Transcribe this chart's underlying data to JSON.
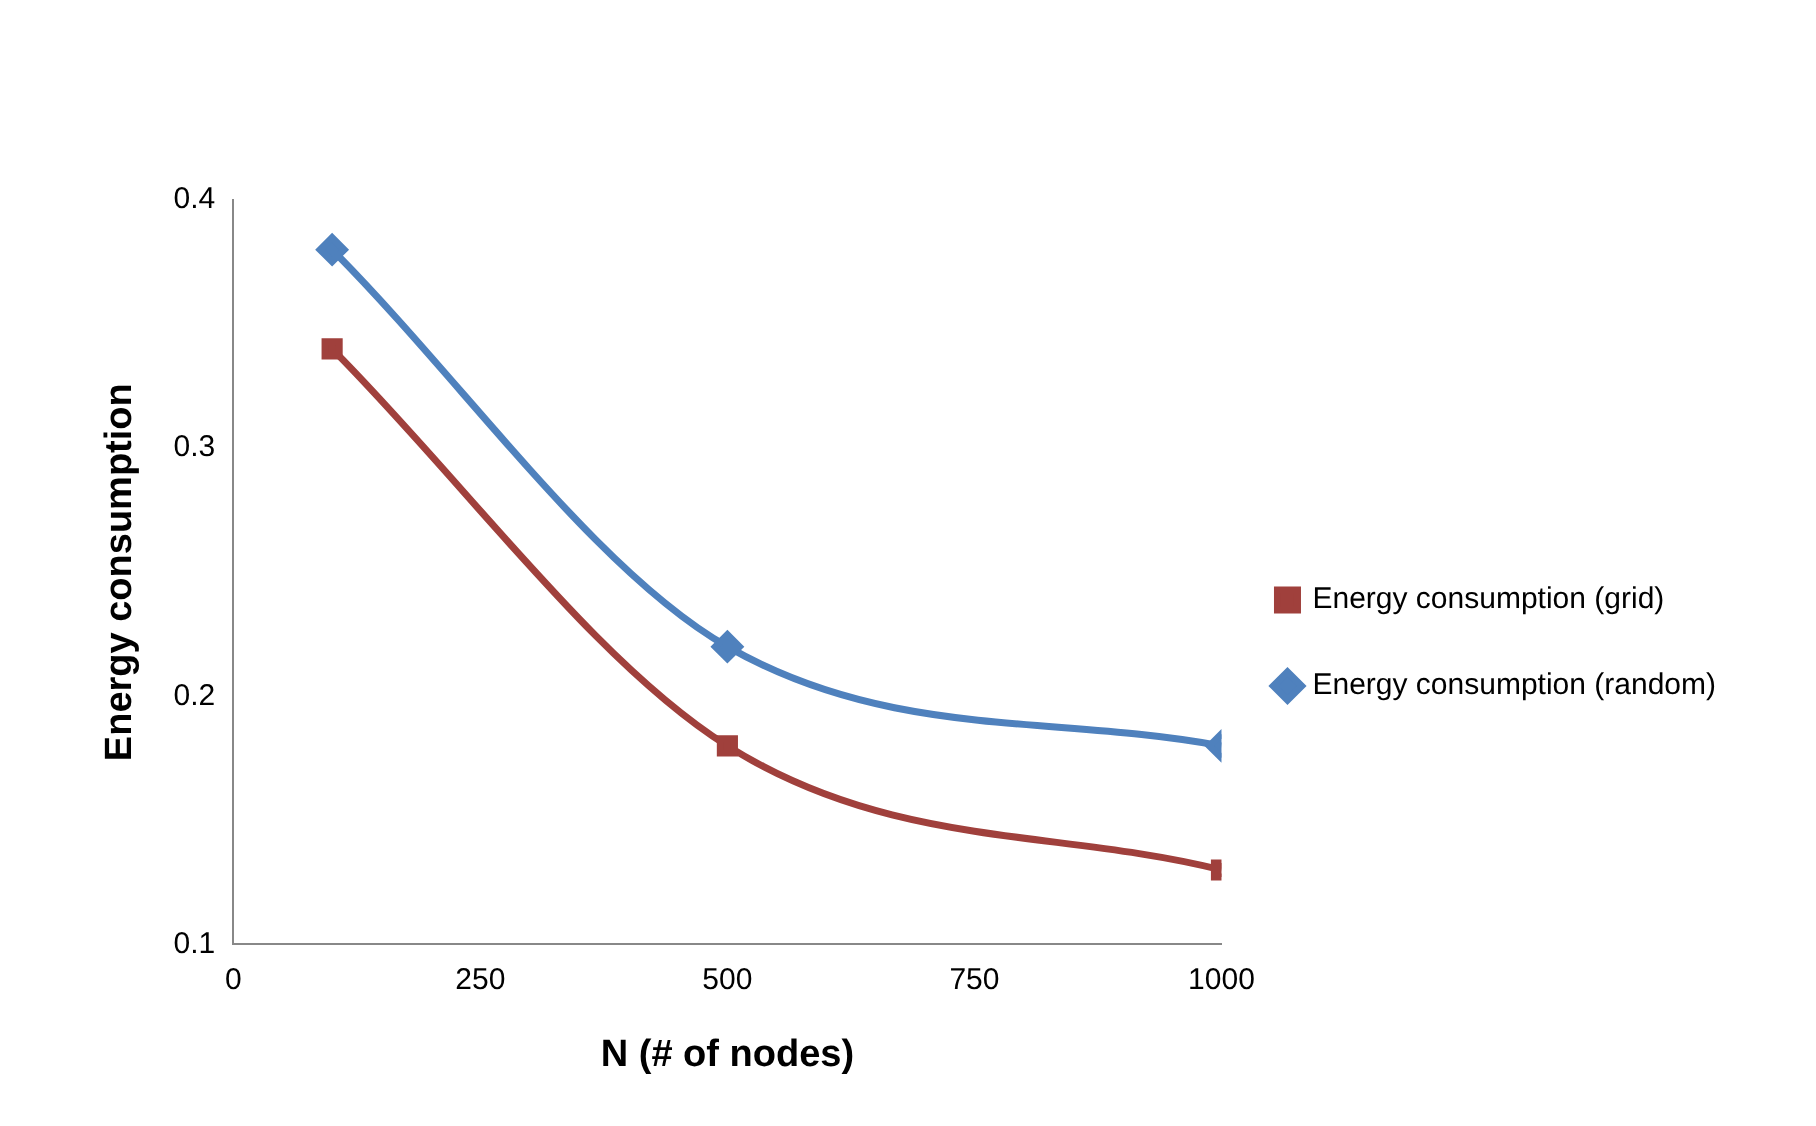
{
  "chart_data": {
    "type": "line",
    "xlabel": "N (# of nodes)",
    "ylabel": "Energy consumption",
    "x": [
      100,
      500,
      1000
    ],
    "series": [
      {
        "name": "Energy consumption (grid)",
        "color": "#a0403c",
        "marker": "square",
        "values": [
          0.34,
          0.18,
          0.13
        ]
      },
      {
        "name": "Energy consumption (random)",
        "color": "#4f81bd",
        "marker": "diamond",
        "values": [
          0.38,
          0.22,
          0.18
        ]
      }
    ],
    "xlim": [
      0,
      1000
    ],
    "xticks": [
      0,
      250,
      500,
      750,
      1000
    ],
    "ylim": [
      0.1,
      0.4
    ],
    "yticks": [
      0.1,
      0.2,
      0.3,
      0.4
    ],
    "grid": false,
    "legend": "right"
  }
}
